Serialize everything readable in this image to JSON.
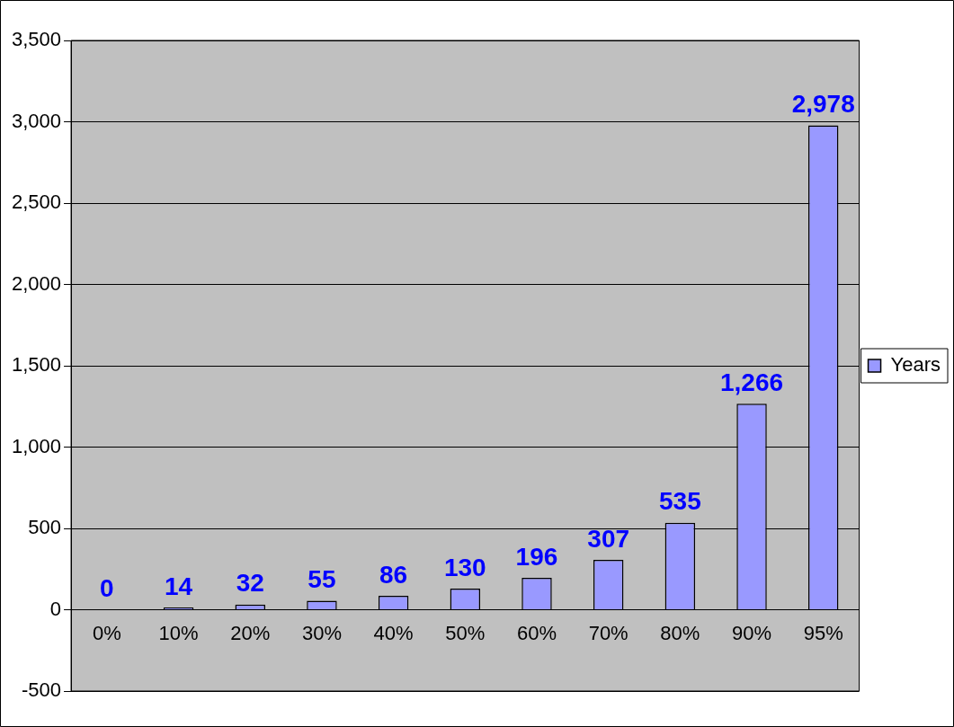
{
  "chart_data": {
    "type": "bar",
    "categories": [
      "0%",
      "10%",
      "20%",
      "30%",
      "40%",
      "50%",
      "60%",
      "70%",
      "80%",
      "90%",
      "95%"
    ],
    "series": [
      {
        "name": "Years",
        "color": "#9999ff",
        "values": [
          0,
          14,
          32,
          55,
          86,
          130,
          196,
          307,
          535,
          1266,
          2978
        ],
        "value_labels": [
          "0",
          "14",
          "32",
          "55",
          "86",
          "130",
          "196",
          "307",
          "535",
          "1,266",
          "2,978"
        ]
      }
    ],
    "ylim": [
      -500,
      3500
    ],
    "yticks": [
      -500,
      0,
      500,
      {
        "value": 1000,
        "label": "1,000"
      },
      {
        "value": 1500,
        "label": "1,500"
      },
      {
        "value": 2000,
        "label": "2,000"
      },
      {
        "value": 2500,
        "label": "2,500"
      },
      {
        "value": 3000,
        "label": "3,000"
      },
      {
        "value": 3500,
        "label": "3,500"
      }
    ],
    "grid": "y",
    "legend": "right"
  }
}
